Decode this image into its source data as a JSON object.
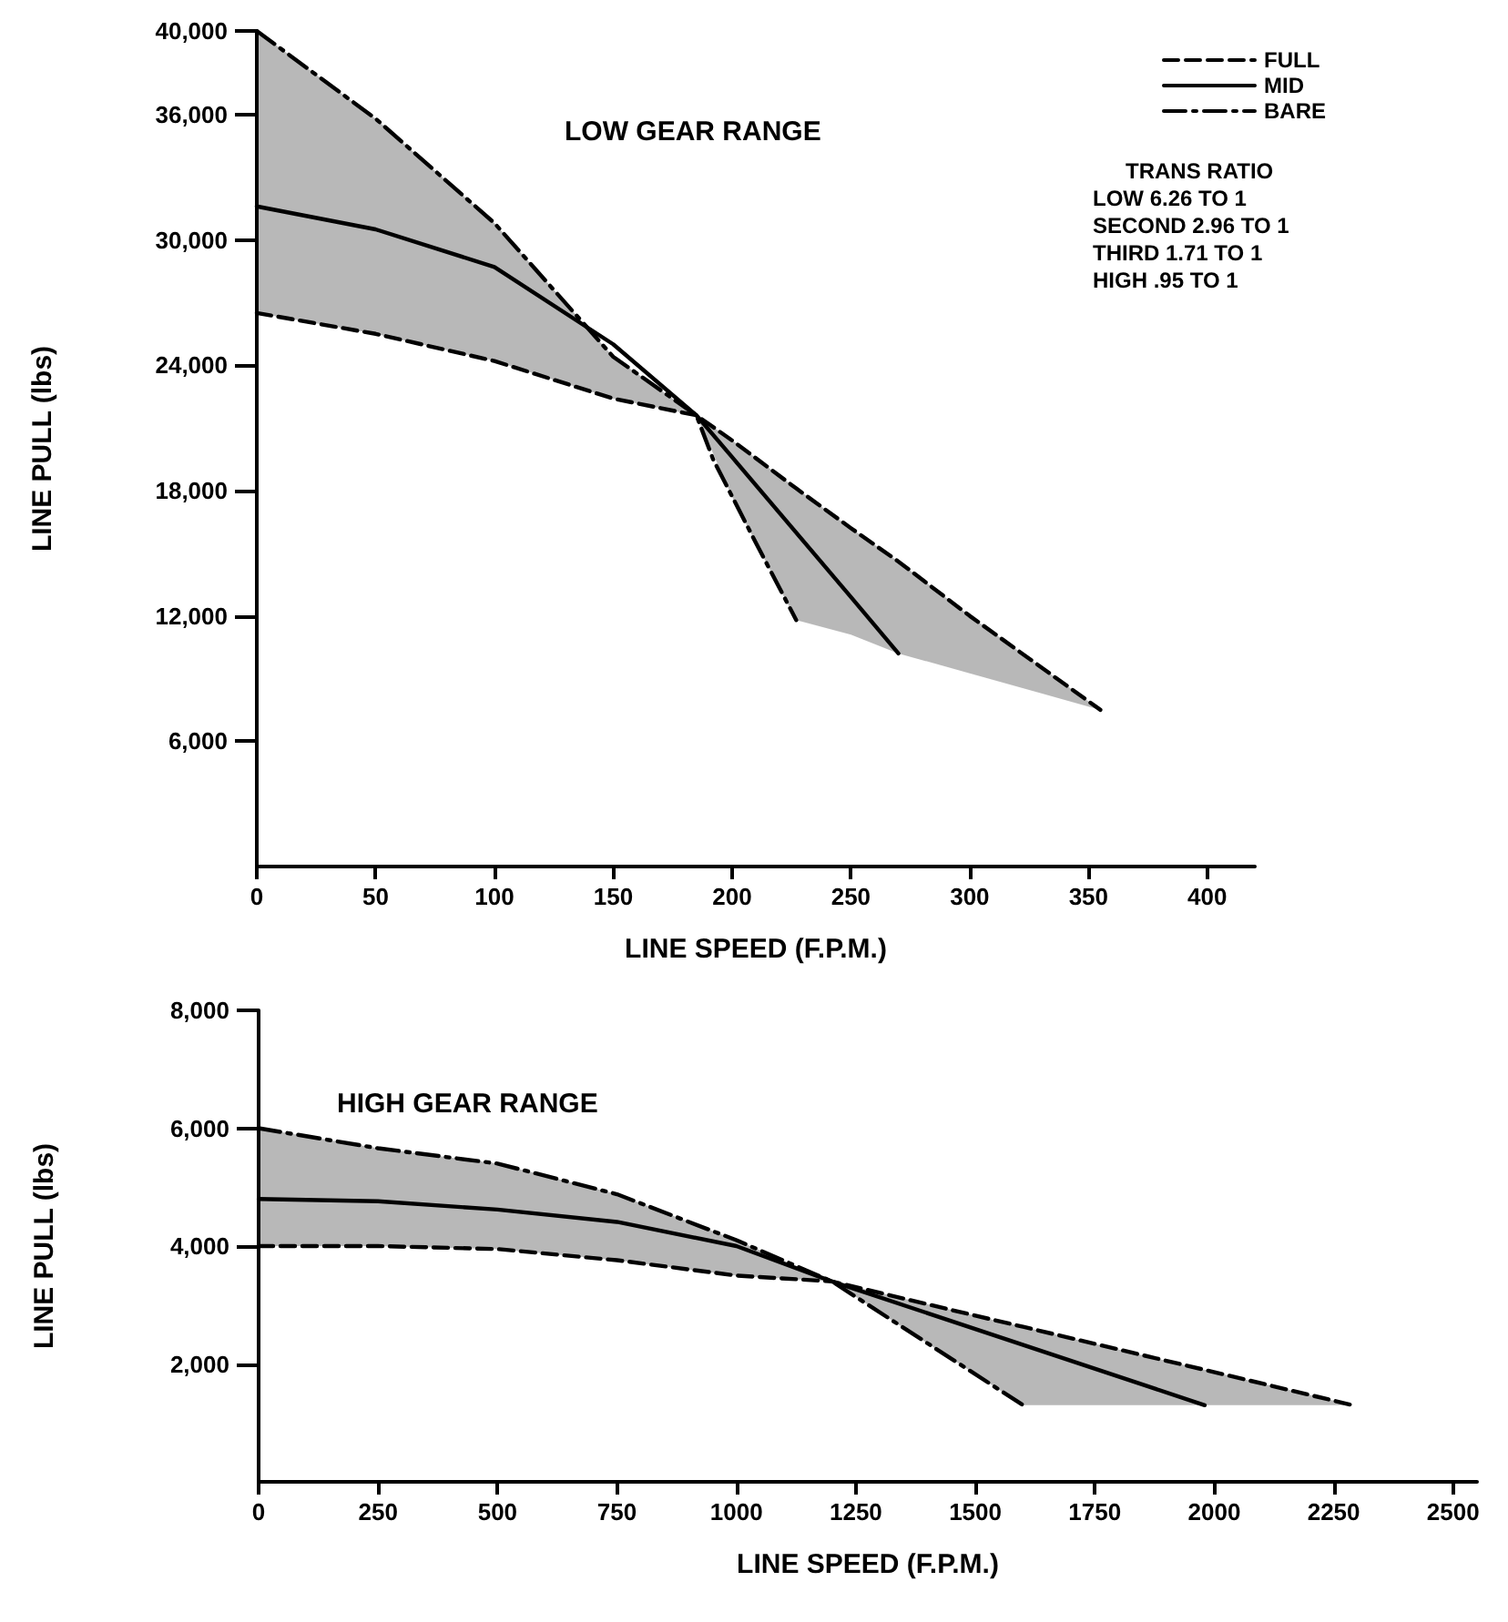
{
  "chart_data": [
    {
      "type": "line",
      "title": "LOW GEAR RANGE",
      "xlabel": "LINE SPEED (F.P.M.)",
      "ylabel": "LINE PULL (lbs)",
      "xlim": [
        0,
        420
      ],
      "xticks": [
        0,
        50,
        100,
        150,
        200,
        250,
        300,
        350,
        400
      ],
      "ylim": [
        0,
        40000
      ],
      "yticks": [
        {
          "value": 6000,
          "label": "6,000"
        },
        {
          "value": 12000,
          "label": "12,000"
        },
        {
          "value": 18000,
          "label": "18,000"
        },
        {
          "value": 24000,
          "label": "24,000"
        },
        {
          "value": 30000,
          "label": "30,000"
        },
        {
          "value": 36000,
          "label": "36,000"
        },
        {
          "value": 40000,
          "label": "40,000"
        }
      ],
      "marker": "none",
      "legend": "top right",
      "annotations": [
        "TRANS RATIO",
        "LOW 6.26 TO 1",
        "SECOND 2.96 TO 1",
        "THIRD 1.71 TO 1",
        "HIGH .95 TO 1"
      ],
      "series": [
        {
          "name": "FULL",
          "color": "#000000",
          "line_style": "dashed",
          "x": [
            0,
            50,
            100,
            150,
            185,
            200,
            227,
            250,
            270,
            300,
            355
          ],
          "values": [
            26500,
            25500,
            24200,
            22400,
            21600,
            20400,
            18100,
            16200,
            14600,
            12000,
            7500
          ],
          "upper": [
            40000,
            35800,
            30800,
            24400,
            21600,
            20400,
            18100,
            16200,
            14600,
            12000,
            7500
          ],
          "lower": [
            26500,
            25500,
            24200,
            22400,
            21600,
            17700,
            11800,
            11100,
            10200,
            9250,
            7500
          ]
        },
        {
          "name": "MID",
          "color": "#000000",
          "line_style": "solid",
          "x": [
            0,
            50,
            100,
            150,
            185,
            200,
            250,
            270
          ],
          "values": [
            31600,
            30500,
            28700,
            25000,
            21600,
            19600,
            12900,
            10200
          ]
        },
        {
          "name": "BARE",
          "color": "#000000",
          "line_style": "dashdot",
          "x": [
            0,
            50,
            100,
            150,
            185,
            192,
            210,
            227
          ],
          "values": [
            40000,
            35800,
            30800,
            24400,
            21600,
            19500,
            15500,
            11800
          ]
        }
      ]
    },
    {
      "type": "line",
      "title": "HIGH GEAR RANGE",
      "xlabel": "LINE SPEED (F.P.M.)",
      "ylabel": "LINE PULL (lbs)",
      "xlim": [
        0,
        2550
      ],
      "xticks": [
        0,
        250,
        500,
        750,
        1000,
        1250,
        1500,
        1750,
        2000,
        2250,
        2500
      ],
      "ylim": [
        0,
        8000
      ],
      "yticks": [
        {
          "value": 2000,
          "label": "2,000"
        },
        {
          "value": 4000,
          "label": "4,000"
        },
        {
          "value": 6000,
          "label": "6,000"
        },
        {
          "value": 8000,
          "label": "8,000"
        }
      ],
      "marker": "none",
      "series": [
        {
          "color": "#000000",
          "line_style": "dashed",
          "x": [
            0,
            250,
            500,
            750,
            1000,
            1200,
            1500,
            1600,
            1980,
            2290
          ],
          "values": [
            4000,
            4000,
            3950,
            3760,
            3500,
            3400,
            2820,
            2630,
            1900,
            1300
          ],
          "upper": [
            6000,
            5660,
            5400,
            4880,
            4100,
            3400,
            2820,
            2630,
            1900,
            1300
          ],
          "lower": [
            4000,
            4000,
            3950,
            3760,
            3500,
            3400,
            1825,
            1300,
            1300,
            1300
          ]
        },
        {
          "color": "#000000",
          "line_style": "solid",
          "x": [
            0,
            250,
            500,
            750,
            1000,
            1200,
            1980
          ],
          "values": [
            4800,
            4760,
            4620,
            4410,
            4000,
            3400,
            1300
          ]
        },
        {
          "color": "#000000",
          "line_style": "dashdot",
          "x": [
            0,
            250,
            500,
            750,
            1000,
            1200,
            1600
          ],
          "values": [
            6000,
            5660,
            5400,
            4880,
            4100,
            3400,
            1300
          ]
        }
      ]
    }
  ]
}
